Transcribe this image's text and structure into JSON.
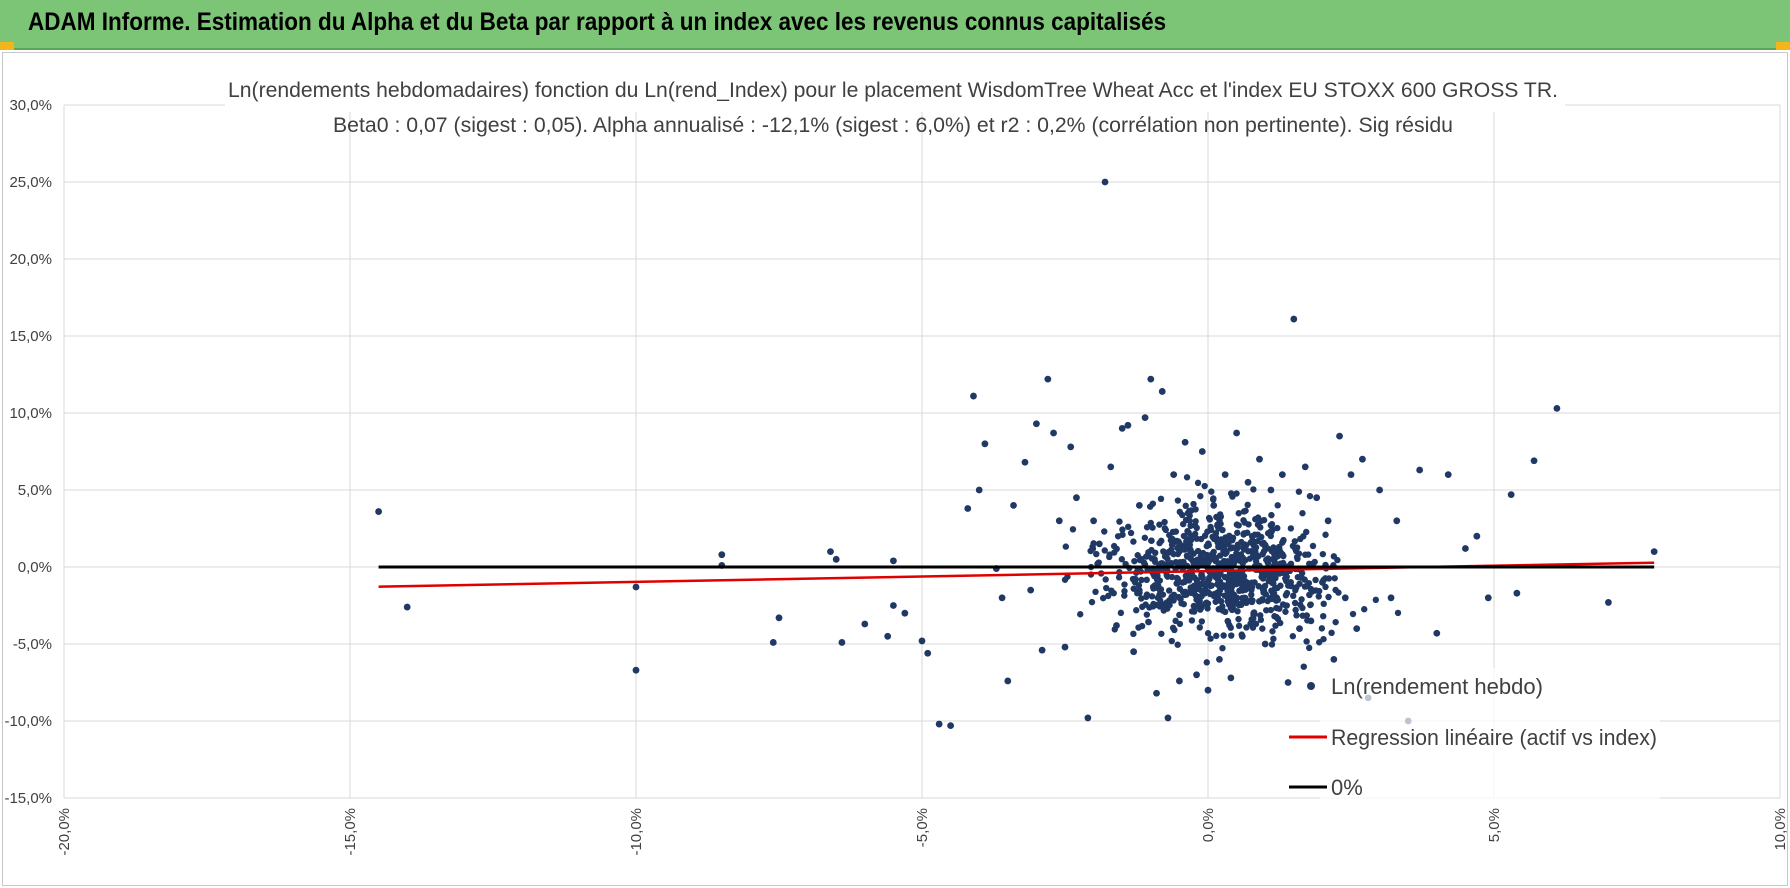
{
  "banner": {
    "title": "ADAM Informe. Estimation du Alpha et du Beta par rapport à un index avec les revenus connus capitalisés",
    "color": "#7cc576"
  },
  "chart_data": {
    "type": "scatter",
    "title": "Ln(rendements hebdomadaires) fonction du Ln(rend_Index) pour le placement WisdomTree Wheat Acc et l'index EU STOXX 600 GROSS TR.",
    "subtitle": "Beta0 : 0,07 (sigest : 0,05).  Alpha annualisé : -12,1% (sigest : 6,0%) et r2 : 0,2% (corrélation non pertinente). Sig résidu",
    "xlabel": "",
    "ylabel": "",
    "xlim": [
      -0.2,
      0.1
    ],
    "ylim": [
      -0.15,
      0.3
    ],
    "x_ticks": [
      "-20,0%",
      "-15,0%",
      "-10,0%",
      "-5,0%",
      "0,0%",
      "5,0%",
      "10,0%"
    ],
    "y_ticks": [
      "30,0%",
      "25,0%",
      "20,0%",
      "15,0%",
      "10,0%",
      "5,0%",
      "0,0%",
      "-5,0%",
      "-10,0%",
      "-15,0%"
    ],
    "grid": true,
    "legend": [
      {
        "label": "Ln(rendement hebdo)",
        "color": "#203864",
        "marker": "dot"
      },
      {
        "label": "Regression linéaire (actif vs index)",
        "color": "#e00000",
        "marker": "line"
      },
      {
        "label": "0%",
        "color": "#000000",
        "marker": "line"
      }
    ],
    "legend_position": "bottom-right",
    "series": [
      {
        "name": "Ln(rendement hebdo)",
        "color": "#203864",
        "points": [
          [
            -0.145,
            0.036
          ],
          [
            -0.14,
            -0.026
          ],
          [
            -0.1,
            -0.013
          ],
          [
            -0.1,
            -0.067
          ],
          [
            -0.085,
            0.008
          ],
          [
            -0.085,
            0.001
          ],
          [
            -0.076,
            -0.049
          ],
          [
            -0.075,
            -0.033
          ],
          [
            -0.066,
            0.01
          ],
          [
            -0.065,
            0.005
          ],
          [
            -0.064,
            -0.049
          ],
          [
            -0.06,
            -0.037
          ],
          [
            -0.056,
            -0.045
          ],
          [
            -0.055,
            -0.025
          ],
          [
            -0.055,
            0.004
          ],
          [
            -0.053,
            -0.03
          ],
          [
            -0.05,
            -0.048
          ],
          [
            -0.049,
            -0.056
          ],
          [
            -0.047,
            -0.102
          ],
          [
            -0.045,
            -0.103
          ],
          [
            -0.042,
            0.038
          ],
          [
            -0.041,
            0.111
          ],
          [
            -0.04,
            0.05
          ],
          [
            -0.039,
            0.08
          ],
          [
            -0.037,
            -0.001
          ],
          [
            -0.036,
            -0.02
          ],
          [
            -0.035,
            -0.074
          ],
          [
            -0.034,
            0.04
          ],
          [
            -0.032,
            0.068
          ],
          [
            -0.031,
            -0.015
          ],
          [
            -0.03,
            0.093
          ],
          [
            -0.029,
            -0.054
          ],
          [
            -0.028,
            0.122
          ],
          [
            -0.027,
            0.087
          ],
          [
            -0.026,
            0.03
          ],
          [
            -0.025,
            -0.052
          ],
          [
            -0.024,
            0.078
          ],
          [
            -0.023,
            0.045
          ],
          [
            -0.021,
            -0.098
          ],
          [
            -0.02,
            0.03
          ],
          [
            -0.019,
            0.015
          ],
          [
            -0.018,
            0.25
          ],
          [
            -0.017,
            0.065
          ],
          [
            -0.016,
            -0.038
          ],
          [
            -0.015,
            0.09
          ],
          [
            -0.014,
            0.092
          ],
          [
            -0.013,
            -0.055
          ],
          [
            -0.012,
            0.04
          ],
          [
            -0.011,
            0.097
          ],
          [
            -0.01,
            0.122
          ],
          [
            -0.009,
            -0.082
          ],
          [
            -0.008,
            0.114
          ],
          [
            -0.007,
            -0.098
          ],
          [
            -0.006,
            0.06
          ],
          [
            -0.005,
            -0.074
          ],
          [
            -0.004,
            0.081
          ],
          [
            -0.003,
            0.02
          ],
          [
            -0.002,
            -0.07
          ],
          [
            -0.001,
            0.075
          ],
          [
            0.0,
            -0.08
          ],
          [
            0.001,
            0.04
          ],
          [
            0.002,
            -0.06
          ],
          [
            0.003,
            0.06
          ],
          [
            0.004,
            -0.072
          ],
          [
            0.005,
            0.087
          ],
          [
            0.006,
            -0.045
          ],
          [
            0.007,
            0.055
          ],
          [
            0.008,
            -0.03
          ],
          [
            0.009,
            0.07
          ],
          [
            0.01,
            -0.05
          ],
          [
            0.011,
            0.05
          ],
          [
            0.012,
            -0.02
          ],
          [
            0.013,
            0.06
          ],
          [
            0.014,
            -0.075
          ],
          [
            0.015,
            0.161
          ],
          [
            0.016,
            -0.04
          ],
          [
            0.017,
            0.065
          ],
          [
            0.018,
            -0.035
          ],
          [
            0.019,
            0.045
          ],
          [
            0.02,
            -0.01
          ],
          [
            0.021,
            0.03
          ],
          [
            0.022,
            -0.06
          ],
          [
            0.023,
            0.085
          ],
          [
            0.024,
            -0.02
          ],
          [
            0.025,
            0.06
          ],
          [
            0.026,
            -0.04
          ],
          [
            0.027,
            0.07
          ],
          [
            0.028,
            -0.085
          ],
          [
            0.03,
            0.05
          ],
          [
            0.032,
            -0.02
          ],
          [
            0.033,
            0.03
          ],
          [
            0.035,
            -0.1
          ],
          [
            0.037,
            0.063
          ],
          [
            0.04,
            -0.043
          ],
          [
            0.042,
            0.06
          ],
          [
            0.045,
            0.012
          ],
          [
            0.047,
            0.02
          ],
          [
            0.049,
            -0.02
          ],
          [
            0.053,
            0.047
          ],
          [
            0.054,
            -0.017
          ],
          [
            0.057,
            0.069
          ],
          [
            0.061,
            0.103
          ],
          [
            0.07,
            -0.023
          ],
          [
            0.078,
            0.01
          ]
        ]
      },
      {
        "name": "Regression linéaire (actif vs index)",
        "color": "#e00000",
        "points": [
          [
            -0.145,
            -0.0128
          ],
          [
            0.078,
            0.0028
          ]
        ]
      },
      {
        "name": "0%",
        "color": "#000000",
        "points": [
          [
            -0.145,
            0.0
          ],
          [
            0.078,
            0.0
          ]
        ]
      }
    ]
  }
}
